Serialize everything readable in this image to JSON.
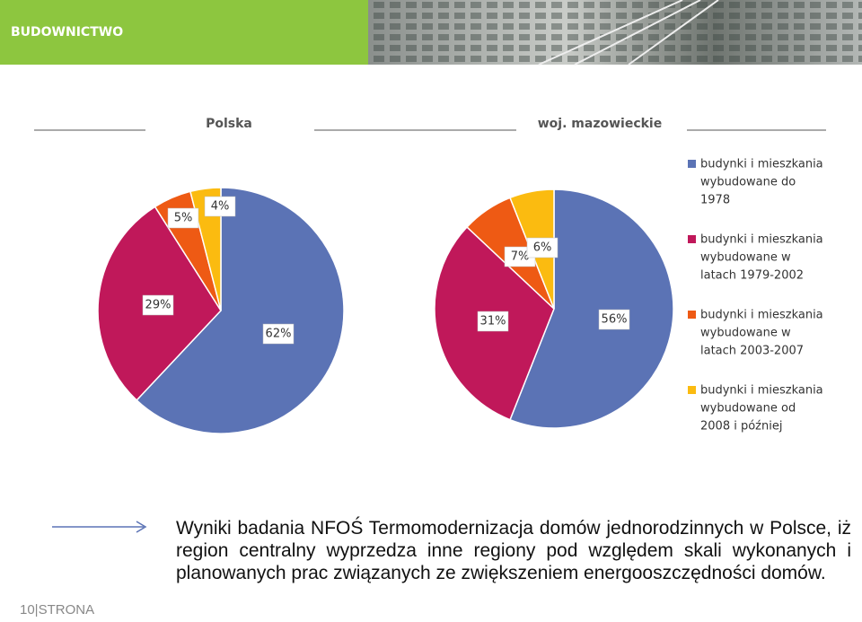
{
  "header": {
    "title": "BUDOWNICTWO"
  },
  "legend": {
    "labels": [
      [
        "budynki i mieszkania",
        "wybudowane do",
        "1978"
      ],
      [
        "budynki i mieszkania",
        "wybudowane w",
        "latach 1979-2002"
      ],
      [
        "budynki i mieszkania",
        "wybudowane w",
        "latach 2003-2007"
      ],
      [
        "budynki i mieszkania",
        "wybudowane od",
        "2008 i później"
      ]
    ],
    "colors": [
      "#5b73b5",
      "#c0185a",
      "#ee5a14",
      "#fbbb10"
    ]
  },
  "chart_data": [
    {
      "type": "pie",
      "title": "Polska",
      "values": [
        62,
        29,
        5,
        4
      ],
      "value_labels": [
        "62%",
        "29%",
        "5%",
        "4%"
      ]
    },
    {
      "type": "pie",
      "title": "woj. mazowieckie",
      "values": [
        56,
        31,
        7,
        6
      ],
      "value_labels": [
        "56%",
        "31%",
        "7%",
        "6%"
      ]
    }
  ],
  "caption": "Wyniki badania NFOŚ Termomodernizacja domów jednorodzinnych w Polsce, iż region centralny wyprzedza inne regiony pod względem skali wykonanych i planowanych prac związanych ze zwiększeniem energooszczędności domów.",
  "page_number": "10|STRONA"
}
